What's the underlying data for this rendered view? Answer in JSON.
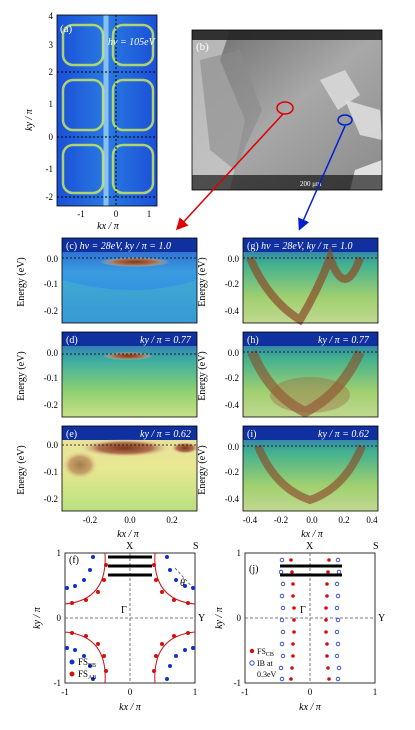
{
  "panels": {
    "a": {
      "tag": "(a)",
      "energy": "hν = 105eV"
    },
    "b": {
      "tag": "(b)",
      "scale": "200 μm"
    },
    "c": {
      "tag": "(c)",
      "header": "hν = 28eV, ky / π = 1.0"
    },
    "d": {
      "tag": "(d)",
      "header": "ky / π = 0.77"
    },
    "e": {
      "tag": "(e)",
      "header": "ky / π = 0.62"
    },
    "f": {
      "tag": "(f)",
      "legend_bb": "FS",
      "legend_bb_sub": "BB",
      "legend_ab": "FS",
      "legend_ab_sub": "AB",
      "label_x": "X",
      "label_s": "S",
      "label_y": "Y",
      "label_gamma": "Γ",
      "label_theta": "θ"
    },
    "g": {
      "tag": "(g)",
      "header": "hν = 28eV, ky / π = 1.0"
    },
    "h": {
      "tag": "(h)",
      "header": "ky / π = 0.77"
    },
    "i": {
      "tag": "(i)",
      "header": "ky / π = 0.62"
    },
    "j": {
      "tag": "(j)",
      "legend_cb": "FS",
      "legend_cb_sub": "CB",
      "legend_ib": "IB at",
      "legend_ib2": "0.3eV",
      "label_x": "X",
      "label_s": "S",
      "label_y": "Y",
      "label_gamma": "Γ"
    }
  },
  "axes": {
    "ky_label": "ky / π",
    "kx_label": "kx / π",
    "energy_label": "Energy (eV)",
    "a_y_ticks": [
      "4",
      "3",
      "2",
      "1",
      "0",
      "-1",
      "-2"
    ],
    "a_x_ticks": [
      "-1",
      "0",
      "1"
    ],
    "c_y_ticks": [
      "0.0",
      "-0.1",
      "-0.2"
    ],
    "g_y_ticks": [
      "0.0",
      "-0.2",
      "-0.4"
    ],
    "left_x_ticks": [
      "-0.2",
      "0.0",
      "0.2"
    ],
    "right_x_ticks": [
      "-0.4",
      "-0.2",
      "0.0",
      "0.2",
      "0.4"
    ],
    "f_y_ticks": [
      "1",
      "0",
      "-1"
    ],
    "f_x_ticks": [
      "-1",
      "0",
      "1"
    ]
  },
  "colors": {
    "spectrum_header": "#1030a0",
    "arrow_red": "#e00000",
    "arrow_blue": "#0020d0",
    "fs_red": "#d01010",
    "fs_blue": "#1030d0"
  }
}
